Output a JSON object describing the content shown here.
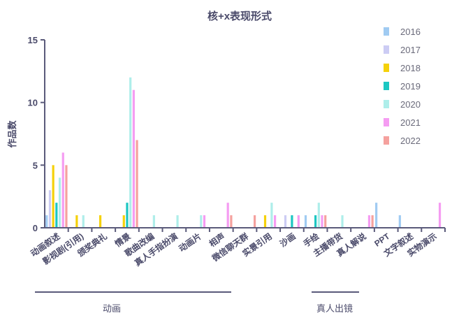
{
  "chart_data": {
    "type": "bar",
    "title": "核+x表现形式",
    "ylabel": "作品数",
    "ylim": [
      0,
      15
    ],
    "yticks": [
      0,
      5,
      10,
      15
    ],
    "categories": [
      "动画叙述",
      "影视剧(引用)",
      "颁奖典礼",
      "情景",
      "歌曲改编",
      "真人手指扮演",
      "动画片",
      "相声",
      "微信聊天群",
      "实景引用",
      "沙画",
      "手绘",
      "主播带货",
      "真人解说",
      "PPT",
      "文字叙述",
      "实物演示"
    ],
    "series": [
      {
        "name": "2016",
        "color": "#a0cbf2",
        "values": [
          1,
          0,
          0,
          0,
          0,
          0,
          0,
          0,
          0,
          0,
          0,
          1,
          0,
          0,
          2,
          1,
          0
        ]
      },
      {
        "name": "2017",
        "color": "#ccccf4",
        "values": [
          3,
          0,
          0,
          0,
          0,
          0,
          0,
          0,
          0,
          0,
          1,
          0,
          0,
          0,
          0,
          0,
          0
        ]
      },
      {
        "name": "2018",
        "color": "#f5d10a",
        "values": [
          5,
          1,
          1,
          1,
          0,
          0,
          0,
          0,
          0,
          1,
          0,
          0,
          0,
          0,
          0,
          0,
          0
        ]
      },
      {
        "name": "2019",
        "color": "#1cc7c2",
        "values": [
          2,
          0,
          0,
          2,
          0,
          0,
          0,
          0,
          0,
          0,
          1,
          1,
          0,
          0,
          0,
          0,
          0
        ]
      },
      {
        "name": "2020",
        "color": "#aeeeea",
        "values": [
          4,
          1,
          0,
          12,
          1,
          1,
          1,
          0,
          0,
          2,
          0,
          2,
          1,
          0,
          0,
          0,
          0
        ]
      },
      {
        "name": "2021",
        "color": "#f59cf2",
        "values": [
          6,
          0,
          0,
          11,
          0,
          0,
          1,
          2,
          0,
          1,
          1,
          1,
          0,
          1,
          0,
          0,
          2
        ]
      },
      {
        "name": "2022",
        "color": "#f5a19e",
        "values": [
          5,
          0,
          0,
          7,
          0,
          0,
          0,
          1,
          1,
          0,
          0,
          1,
          0,
          1,
          0,
          0,
          0
        ]
      }
    ],
    "groups": [
      {
        "label": "动画"
      },
      {
        "label": "真人出镜"
      }
    ],
    "legend": "top-right",
    "grid": false
  }
}
